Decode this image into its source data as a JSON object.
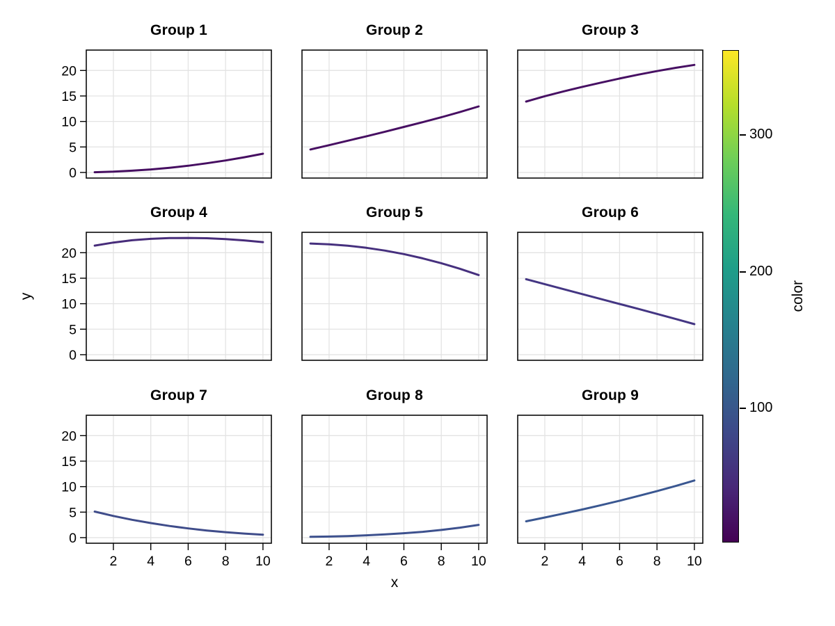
{
  "figure": {
    "background": "#ffffff",
    "grid_color": "#e3e3e3",
    "border_color": "#0a0a0a"
  },
  "labels": {
    "x": "x",
    "y": "y",
    "colorbar": "color"
  },
  "chart_data": {
    "type": "line",
    "layout": "3x3 facet grid, shared axes, colorbar at right",
    "x": [
      1,
      2,
      3,
      4,
      5,
      6,
      7,
      8,
      9,
      10
    ],
    "x_ticks": [
      2,
      4,
      6,
      8,
      10
    ],
    "y_ticks": [
      0,
      5,
      10,
      15,
      20
    ],
    "xlim": [
      0.55,
      10.45
    ],
    "ylim": [
      -1.1,
      24.0
    ],
    "xlabel": "x",
    "ylabel": "y",
    "grid": true,
    "groups": [
      {
        "name": "Group 1",
        "color": "#460e61",
        "values": [
          0.05,
          0.16,
          0.34,
          0.59,
          0.92,
          1.32,
          1.8,
          2.35,
          2.98,
          3.67
        ]
      },
      {
        "name": "Group 2",
        "color": "#470f62",
        "values": [
          4.5,
          5.35,
          6.22,
          7.1,
          8.0,
          8.92,
          9.86,
          10.82,
          11.85,
          12.95
        ]
      },
      {
        "name": "Group 3",
        "color": "#471063",
        "values": [
          13.9,
          14.95,
          15.9,
          16.78,
          17.62,
          18.42,
          19.18,
          19.88,
          20.52,
          21.1
        ]
      },
      {
        "name": "Group 4",
        "color": "#472c7a",
        "values": [
          21.4,
          22.0,
          22.45,
          22.72,
          22.87,
          22.9,
          22.84,
          22.68,
          22.42,
          22.08
        ]
      },
      {
        "name": "Group 5",
        "color": "#46307e",
        "values": [
          21.8,
          21.66,
          21.38,
          20.96,
          20.41,
          19.73,
          18.9,
          17.94,
          16.85,
          15.62
        ]
      },
      {
        "name": "Group 6",
        "color": "#443683",
        "values": [
          14.8,
          13.82,
          12.85,
          11.88,
          10.92,
          9.95,
          8.98,
          8.0,
          7.0,
          6.0
        ]
      },
      {
        "name": "Group 7",
        "color": "#3f4c8a",
        "values": [
          5.1,
          4.25,
          3.5,
          2.85,
          2.28,
          1.8,
          1.4,
          1.07,
          0.8,
          0.58
        ]
      },
      {
        "name": "Group 8",
        "color": "#3d518e",
        "values": [
          0.15,
          0.21,
          0.31,
          0.45,
          0.63,
          0.86,
          1.14,
          1.5,
          1.95,
          2.5
        ]
      },
      {
        "name": "Group 9",
        "color": "#3a5791",
        "values": [
          3.2,
          3.95,
          4.72,
          5.52,
          6.36,
          7.24,
          8.16,
          9.12,
          10.13,
          11.2
        ]
      }
    ],
    "colorbar": {
      "label": "color",
      "ticks": [
        100,
        200,
        300
      ],
      "range": [
        2,
        362
      ],
      "colormap": "viridis",
      "gradient_bottom_to_top": [
        "#440154",
        "#482878",
        "#3e4989",
        "#31688e",
        "#26828e",
        "#1f9e89",
        "#35b779",
        "#6ece58",
        "#b5de2b",
        "#fde725"
      ]
    }
  }
}
